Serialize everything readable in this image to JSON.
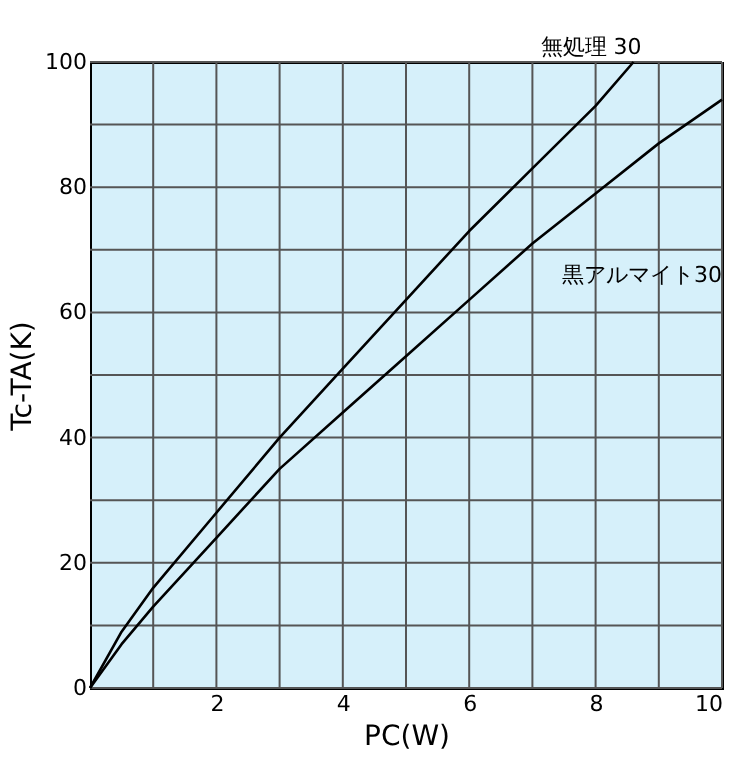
{
  "chart_data": {
    "type": "line",
    "xlabel": "PC(W)",
    "ylabel": "Tc-TA(K)",
    "xlim": [
      0,
      10
    ],
    "ylim": [
      0,
      100
    ],
    "xticks": [
      {
        "value": 1,
        "label": null
      },
      2,
      {
        "value": 3,
        "label": null
      },
      4,
      {
        "value": 5,
        "label": null
      },
      6,
      {
        "value": 7,
        "label": null
      },
      8,
      {
        "value": 9,
        "label": null
      },
      10
    ],
    "yticks": [
      0,
      {
        "value": 10,
        "label": null
      },
      20,
      {
        "value": 30,
        "label": null
      },
      40,
      {
        "value": 50,
        "label": null
      },
      60,
      {
        "value": 70,
        "label": null
      },
      80,
      {
        "value": 90,
        "label": null
      },
      100
    ],
    "grid": true,
    "legend": false,
    "marker": "none",
    "line_style": "solid",
    "series": [
      {
        "name": "無処理 30",
        "color": "#000000",
        "x": [
          0,
          0.5,
          1,
          2,
          3,
          4,
          5,
          6,
          7,
          8,
          8.6
        ],
        "values": [
          0,
          9,
          16,
          28,
          40,
          51,
          62,
          73,
          83,
          93,
          100
        ]
      },
      {
        "name": "黒アルマイト30",
        "color": "#000000",
        "x": [
          0,
          0.5,
          1,
          2,
          3,
          4,
          5,
          6,
          7,
          8,
          9,
          10
        ],
        "values": [
          0,
          7,
          13,
          24,
          35,
          44,
          53,
          62,
          71,
          79,
          87,
          94
        ]
      }
    ]
  }
}
